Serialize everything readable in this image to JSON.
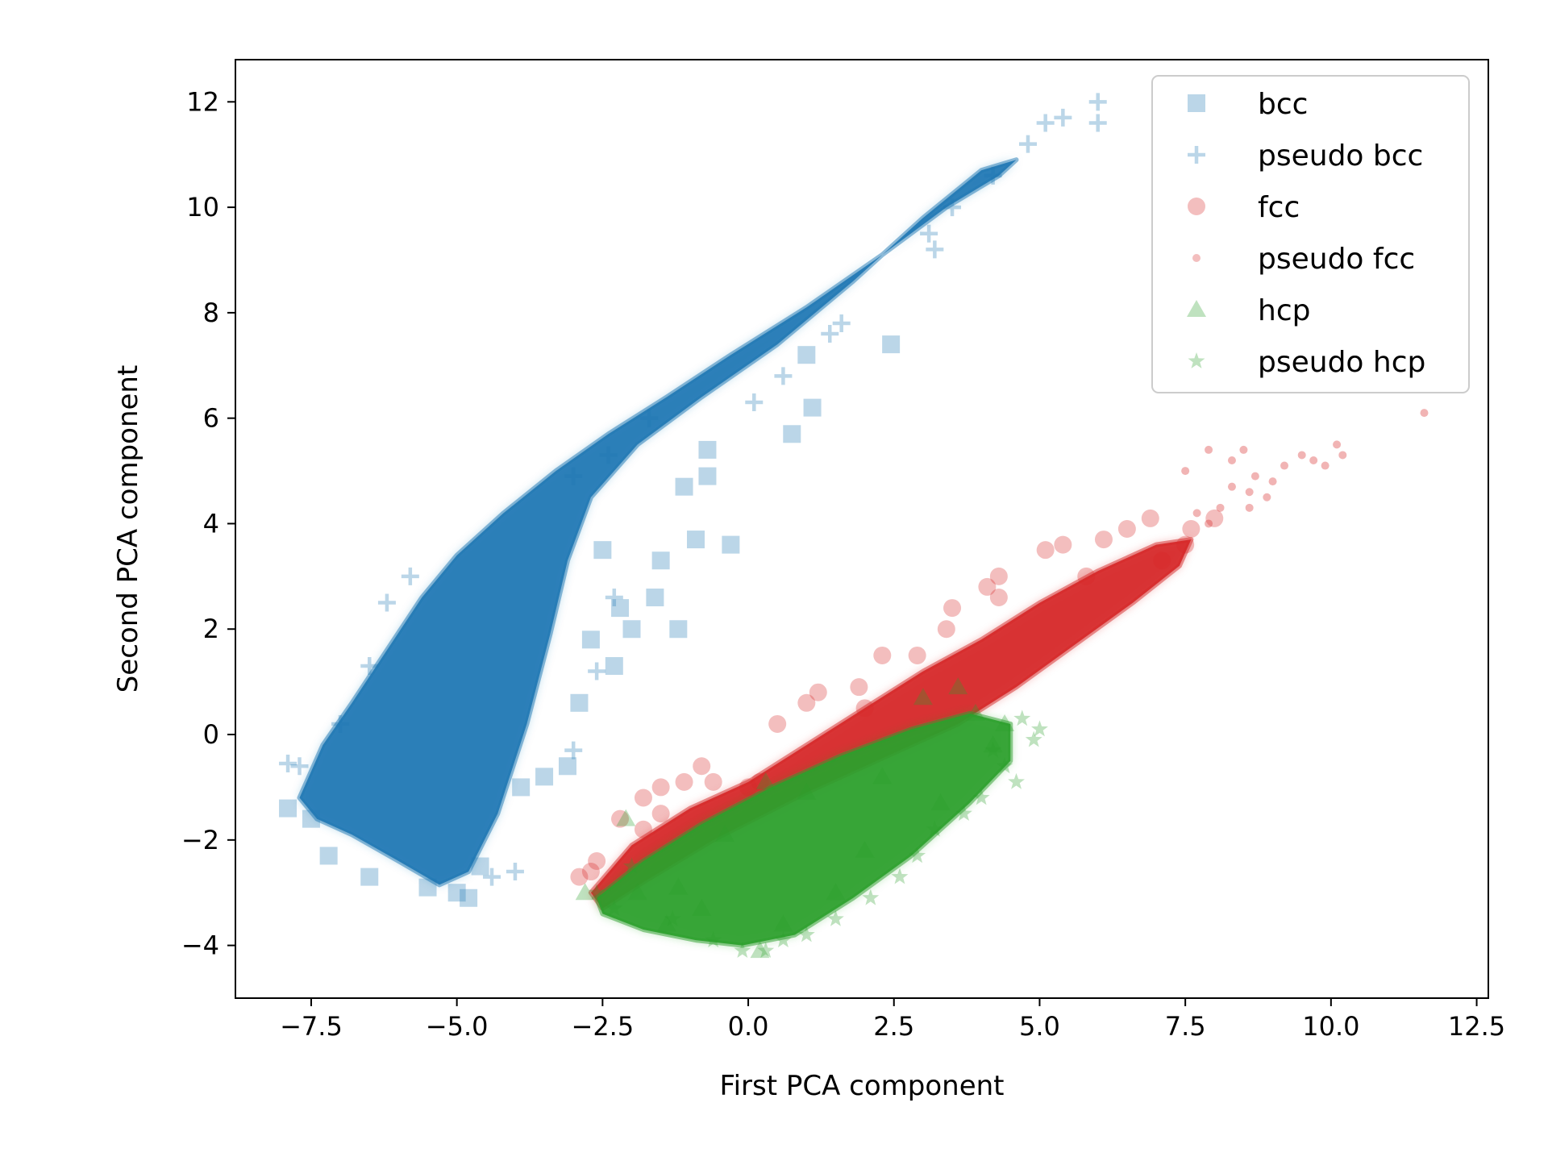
{
  "chart_data": {
    "type": "scatter",
    "title": "",
    "xlabel": "First PCA component",
    "ylabel": "Second PCA component",
    "xlim": [
      -8.8,
      12.7
    ],
    "ylim": [
      -5.0,
      12.8
    ],
    "xticks": [
      -7.5,
      -5.0,
      -2.5,
      0.0,
      2.5,
      5.0,
      7.5,
      10.0,
      12.5
    ],
    "xtick_labels": [
      "−7.5",
      "−5.0",
      "−2.5",
      "0.0",
      "2.5",
      "5.0",
      "7.5",
      "10.0",
      "12.5"
    ],
    "yticks": [
      -4,
      -2,
      0,
      2,
      4,
      6,
      8,
      10,
      12
    ],
    "ytick_labels": [
      "−4",
      "−2",
      "0",
      "2",
      "4",
      "6",
      "8",
      "10",
      "12"
    ],
    "grid": false,
    "legend_position": "top-right",
    "series": [
      {
        "name": "bcc",
        "marker": "square",
        "color": "#1f77b4",
        "points": [
          [
            2.45,
            7.4
          ],
          [
            1.0,
            7.2
          ],
          [
            1.1,
            6.2
          ],
          [
            0.75,
            5.7
          ],
          [
            -0.7,
            5.4
          ],
          [
            -0.7,
            4.9
          ],
          [
            -1.1,
            4.7
          ],
          [
            -0.3,
            3.6
          ],
          [
            -0.9,
            3.7
          ],
          [
            -1.5,
            3.3
          ],
          [
            -1.6,
            2.6
          ],
          [
            -2.2,
            2.4
          ],
          [
            -1.2,
            2.0
          ],
          [
            -2.0,
            2.0
          ],
          [
            -2.3,
            1.3
          ],
          [
            -2.9,
            0.6
          ],
          [
            -3.5,
            -0.8
          ],
          [
            -3.9,
            -1.0
          ],
          [
            -4.6,
            -2.5
          ],
          [
            -5.0,
            -3.0
          ],
          [
            -5.5,
            -2.9
          ],
          [
            -6.5,
            -2.7
          ],
          [
            -7.2,
            -2.3
          ],
          [
            -7.5,
            -1.6
          ],
          [
            -7.9,
            -1.4
          ],
          [
            -3.1,
            -0.6
          ],
          [
            -2.7,
            1.8
          ],
          [
            -2.5,
            3.5
          ],
          [
            -4.8,
            -3.1
          ]
        ]
      },
      {
        "name": "pseudo bcc",
        "marker": "plus",
        "color": "#1f77b4",
        "points": [
          [
            6.0,
            12.0
          ],
          [
            6.0,
            11.6
          ],
          [
            5.4,
            11.7
          ],
          [
            5.1,
            11.6
          ],
          [
            4.8,
            11.2
          ],
          [
            4.2,
            10.6
          ],
          [
            3.5,
            10.0
          ],
          [
            3.1,
            9.5
          ],
          [
            3.2,
            9.2
          ],
          [
            1.6,
            7.8
          ],
          [
            1.4,
            7.6
          ],
          [
            0.6,
            6.8
          ],
          [
            0.1,
            6.3
          ],
          [
            -7.9,
            -0.55
          ],
          [
            -7.7,
            -0.6
          ],
          [
            -6.5,
            1.3
          ],
          [
            -7.0,
            0.2
          ],
          [
            -6.2,
            2.5
          ],
          [
            -5.8,
            3.0
          ],
          [
            -3.0,
            4.9
          ],
          [
            -2.4,
            5.3
          ],
          [
            -1.7,
            6.0
          ],
          [
            -2.3,
            2.6
          ],
          [
            -2.6,
            1.2
          ],
          [
            -3.0,
            -0.3
          ],
          [
            -4.0,
            -2.6
          ],
          [
            -4.4,
            -2.7
          ]
        ]
      },
      {
        "name": "fcc",
        "marker": "circle",
        "color": "#d62728",
        "points": [
          [
            -2.9,
            -2.7
          ],
          [
            -2.7,
            -2.6
          ],
          [
            -2.6,
            -2.4
          ],
          [
            -2.2,
            -1.6
          ],
          [
            -1.8,
            -1.8
          ],
          [
            -1.8,
            -1.2
          ],
          [
            -1.5,
            -1.0
          ],
          [
            -1.1,
            -0.9
          ],
          [
            -0.8,
            -0.6
          ],
          [
            -0.6,
            -0.9
          ],
          [
            0.2,
            -0.9
          ],
          [
            0.5,
            0.2
          ],
          [
            1.0,
            0.6
          ],
          [
            1.2,
            0.8
          ],
          [
            1.9,
            0.9
          ],
          [
            2.3,
            1.5
          ],
          [
            2.9,
            1.5
          ],
          [
            3.4,
            2.0
          ],
          [
            3.5,
            2.4
          ],
          [
            4.1,
            2.8
          ],
          [
            4.3,
            2.6
          ],
          [
            4.3,
            3.0
          ],
          [
            5.1,
            3.5
          ],
          [
            5.4,
            3.6
          ],
          [
            6.1,
            3.7
          ],
          [
            6.5,
            3.9
          ],
          [
            6.9,
            4.1
          ],
          [
            7.1,
            3.3
          ],
          [
            7.5,
            3.6
          ],
          [
            7.6,
            3.9
          ],
          [
            8.0,
            4.1
          ],
          [
            -1.5,
            -1.5
          ],
          [
            0.0,
            -1.0
          ],
          [
            2.0,
            0.5
          ],
          [
            5.8,
            3.0
          ]
        ]
      },
      {
        "name": "pseudo fcc",
        "marker": "point",
        "color": "#d62728",
        "points": [
          [
            11.6,
            6.1
          ],
          [
            10.1,
            5.5
          ],
          [
            10.2,
            5.3
          ],
          [
            9.9,
            5.1
          ],
          [
            9.7,
            5.2
          ],
          [
            9.5,
            5.3
          ],
          [
            9.2,
            5.1
          ],
          [
            9.0,
            4.8
          ],
          [
            8.9,
            4.5
          ],
          [
            8.7,
            4.9
          ],
          [
            8.6,
            4.6
          ],
          [
            8.5,
            5.4
          ],
          [
            8.3,
            5.2
          ],
          [
            8.1,
            4.3
          ],
          [
            7.9,
            5.4
          ],
          [
            8.6,
            4.3
          ],
          [
            8.3,
            4.7
          ],
          [
            7.7,
            4.2
          ],
          [
            7.5,
            5.0
          ],
          [
            7.9,
            4.0
          ]
        ]
      },
      {
        "name": "hcp",
        "marker": "triangle",
        "color": "#2ca02c",
        "points": [
          [
            -2.1,
            -1.6
          ],
          [
            -2.8,
            -3.0
          ],
          [
            -1.4,
            -3.6
          ],
          [
            -1.2,
            -2.9
          ],
          [
            -0.4,
            -1.9
          ],
          [
            0.3,
            -0.9
          ],
          [
            0.6,
            -3.6
          ],
          [
            0.2,
            -4.1
          ],
          [
            1.0,
            -1.1
          ],
          [
            2.3,
            -0.8
          ],
          [
            3.0,
            0.7
          ],
          [
            3.6,
            0.9
          ],
          [
            3.9,
            0.4
          ],
          [
            4.2,
            -0.2
          ],
          [
            4.4,
            0.2
          ],
          [
            3.3,
            -1.3
          ],
          [
            2.0,
            -2.2
          ],
          [
            1.5,
            -3.0
          ],
          [
            -0.8,
            -3.3
          ],
          [
            -1.9,
            -3.0
          ]
        ]
      },
      {
        "name": "pseudo hcp",
        "marker": "star",
        "color": "#2ca02c",
        "points": [
          [
            4.9,
            -0.1
          ],
          [
            5.0,
            0.1
          ],
          [
            4.7,
            0.3
          ],
          [
            4.4,
            -0.6
          ],
          [
            4.6,
            -0.9
          ],
          [
            4.0,
            -1.2
          ],
          [
            3.7,
            -1.5
          ],
          [
            2.9,
            -2.3
          ],
          [
            2.6,
            -2.7
          ],
          [
            2.1,
            -3.1
          ],
          [
            1.5,
            -3.5
          ],
          [
            1.0,
            -3.8
          ],
          [
            0.6,
            -3.9
          ],
          [
            0.3,
            -4.1
          ],
          [
            -0.1,
            -4.1
          ],
          [
            -0.6,
            -3.9
          ],
          [
            -1.3,
            -3.5
          ],
          [
            -2.3,
            -3.3
          ],
          [
            -2.6,
            -3.0
          ],
          [
            -2.0,
            -2.5
          ],
          [
            3.2,
            -1.8
          ],
          [
            4.2,
            -0.3
          ]
        ]
      }
    ]
  }
}
